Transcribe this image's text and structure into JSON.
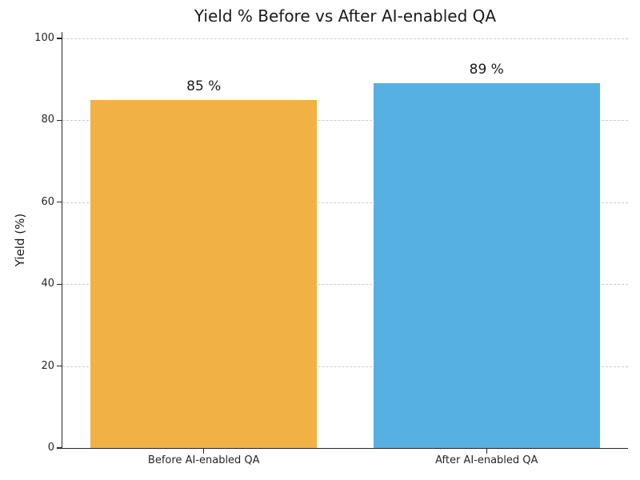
{
  "chart_data": {
    "type": "bar",
    "title": "Yield % Before vs After AI-enabled QA",
    "xlabel": "",
    "ylabel": "Yield (%)",
    "categories": [
      "Before AI-enabled QA",
      "After AI-enabled QA"
    ],
    "values": [
      85,
      89
    ],
    "value_labels": [
      "85 %",
      "89 %"
    ],
    "bar_colors": [
      "#F1B144",
      "#56B1E2"
    ],
    "ylim": [
      0,
      100
    ],
    "yticks": [
      0,
      20,
      40,
      60,
      80,
      100
    ],
    "grid": "horizontal-dashed",
    "grid_color": "#cccccc",
    "axis_color": "#262626",
    "text_color": "#1a1a1a",
    "background_color": "#ffffff",
    "legend": "none"
  }
}
